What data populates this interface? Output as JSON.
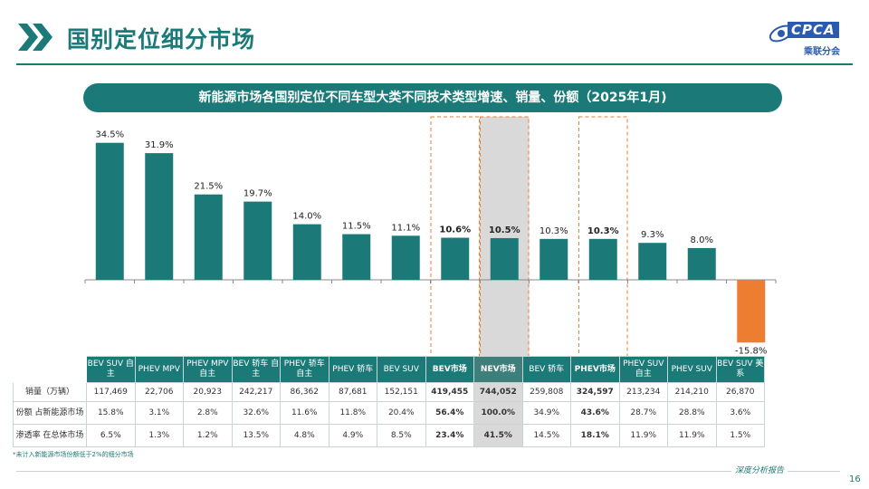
{
  "page": {
    "title": "国别定位细分市场",
    "subtitle": "新能源市场各国别定位不同车型大类不同技术类型增速、销量、份额（2025年1月)",
    "footnote": "*未计入新能源市场份额低于2%的细分市场",
    "report_tag": "深度分析报告",
    "page_number": "16"
  },
  "logo": {
    "text": "CPCA",
    "sub": "乘联分会"
  },
  "colors": {
    "teal": "#1b7a78",
    "orange": "#ed7d31",
    "highlight_gray": "#d9d9d9",
    "highlight_border": "#ed7d31"
  },
  "chart_data": {
    "type": "bar",
    "categories": [
      "BEV SUV 自主",
      "PHEV MPV",
      "PHEV MPV自主",
      "BEV 轿车 自主",
      "PHEV 轿车自主",
      "PHEV 轿车",
      "BEV SUV",
      "BEV市场",
      "NEV市场",
      "BEV 轿车",
      "PHEV市场",
      "PHEV SUV 自主",
      "PHEV SUV",
      "BEV SUV 美系"
    ],
    "values": [
      34.5,
      31.9,
      21.5,
      19.7,
      14.0,
      11.5,
      11.1,
      10.6,
      10.5,
      10.3,
      10.3,
      9.3,
      8.0,
      -15.8
    ],
    "labels": [
      "34.5%",
      "31.9%",
      "21.5%",
      "19.7%",
      "14.0%",
      "11.5%",
      "11.1%",
      "10.6%",
      "10.5%",
      "10.3%",
      "10.3%",
      "9.3%",
      "8.0%",
      "-15.8%"
    ],
    "bold_labels": [
      7,
      8,
      10
    ],
    "highlight_dashed": [
      7,
      8,
      10
    ],
    "highlight_shaded": [
      8
    ],
    "negative_color": "orange",
    "ylim": [
      -20,
      40
    ]
  },
  "table": {
    "headers": [
      "BEV SUV 自主",
      "PHEV MPV",
      "PHEV MPV自主",
      "BEV 轿车 自主",
      "PHEV 轿车自主",
      "PHEV 轿车",
      "BEV SUV",
      "BEV市场",
      "NEV市场",
      "BEV 轿车",
      "PHEV市场",
      "PHEV SUV 自主",
      "PHEV SUV",
      "BEV SUV 美系"
    ],
    "rows": [
      {
        "label": "销量（万辆）",
        "values": [
          "117,469",
          "22,706",
          "20,923",
          "242,217",
          "86,362",
          "87,681",
          "152,151",
          "419,455",
          "744,052",
          "259,808",
          "324,597",
          "213,234",
          "214,210",
          "26,870"
        ]
      },
      {
        "label": "份额 占新能源市场",
        "values": [
          "15.8%",
          "3.1%",
          "2.8%",
          "32.6%",
          "11.6%",
          "11.8%",
          "20.4%",
          "56.4%",
          "100.0%",
          "34.9%",
          "43.6%",
          "28.7%",
          "28.8%",
          "3.6%"
        ]
      },
      {
        "label": "渗透率 在总体市场",
        "values": [
          "6.5%",
          "1.3%",
          "1.2%",
          "13.5%",
          "4.8%",
          "4.9%",
          "8.5%",
          "23.4%",
          "41.5%",
          "14.5%",
          "18.1%",
          "11.9%",
          "11.9%",
          "1.5%"
        ]
      }
    ]
  }
}
